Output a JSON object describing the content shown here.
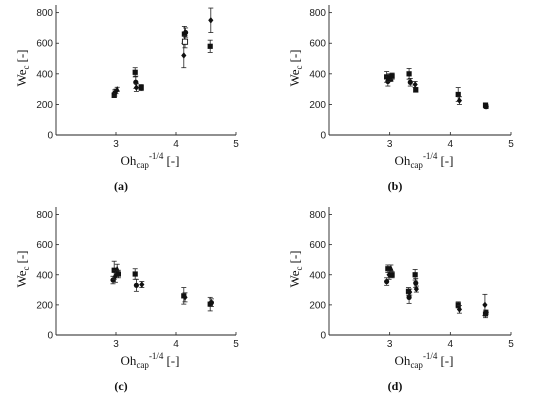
{
  "chart_data": [
    {
      "type": "scatter",
      "panel_label": "(a)",
      "xlabel": "Oh",
      "xlabel_sub": "cap",
      "xlabel_sup": "-1/4",
      "xlabel_unit": "[-]",
      "ylabel": "We",
      "ylabel_sub": "c",
      "ylabel_unit": "[-]",
      "xlim": [
        2,
        5
      ],
      "ylim": [
        0,
        850
      ],
      "xticks": [
        3,
        4,
        5
      ],
      "yticks": [
        0,
        200,
        400,
        600,
        800
      ],
      "grid": false,
      "points": [
        {
          "x": 2.97,
          "y": 260,
          "err": 15,
          "marker": "square"
        },
        {
          "x": 2.98,
          "y": 275,
          "err": 20,
          "marker": "circle"
        },
        {
          "x": 3.0,
          "y": 285,
          "err": 15,
          "marker": "diamond"
        },
        {
          "x": 3.02,
          "y": 300,
          "err": 12,
          "marker": "triangle"
        },
        {
          "x": 3.32,
          "y": 410,
          "err": 30,
          "marker": "square"
        },
        {
          "x": 3.33,
          "y": 345,
          "err": 40,
          "marker": "circle"
        },
        {
          "x": 3.34,
          "y": 310,
          "err": 25,
          "marker": "diamond"
        },
        {
          "x": 3.42,
          "y": 310,
          "err": 20,
          "marker": "square"
        },
        {
          "x": 4.13,
          "y": 520,
          "err": 80,
          "marker": "diamond"
        },
        {
          "x": 4.14,
          "y": 660,
          "err": 50,
          "marker": "square"
        },
        {
          "x": 4.15,
          "y": 610,
          "err": 40,
          "marker": "square-open"
        },
        {
          "x": 4.16,
          "y": 670,
          "err": 30,
          "marker": "circle"
        },
        {
          "x": 4.57,
          "y": 580,
          "err": 40,
          "marker": "square"
        },
        {
          "x": 4.58,
          "y": 750,
          "err": 80,
          "marker": "diamond"
        }
      ]
    },
    {
      "type": "scatter",
      "panel_label": "(b)",
      "xlabel": "Oh",
      "xlabel_sub": "cap",
      "xlabel_sup": "-1/4",
      "xlabel_unit": "[-]",
      "ylabel": "We",
      "ylabel_sub": "c",
      "ylabel_unit": "[-]",
      "xlim": [
        2,
        5
      ],
      "ylim": [
        0,
        850
      ],
      "xticks": [
        3,
        4,
        5
      ],
      "yticks": [
        0,
        200,
        400,
        600,
        800
      ],
      "grid": false,
      "points": [
        {
          "x": 2.95,
          "y": 380,
          "err": 35,
          "marker": "square"
        },
        {
          "x": 2.97,
          "y": 350,
          "err": 30,
          "marker": "circle"
        },
        {
          "x": 2.99,
          "y": 375,
          "err": 25,
          "marker": "diamond"
        },
        {
          "x": 3.02,
          "y": 370,
          "err": 20,
          "marker": "triangle"
        },
        {
          "x": 3.04,
          "y": 385,
          "err": 20,
          "marker": "square"
        },
        {
          "x": 3.32,
          "y": 400,
          "err": 35,
          "marker": "square"
        },
        {
          "x": 3.34,
          "y": 345,
          "err": 25,
          "marker": "circle"
        },
        {
          "x": 3.42,
          "y": 330,
          "err": 20,
          "marker": "diamond"
        },
        {
          "x": 3.43,
          "y": 295,
          "err": 15,
          "marker": "square"
        },
        {
          "x": 4.13,
          "y": 265,
          "err": 45,
          "marker": "square"
        },
        {
          "x": 4.15,
          "y": 225,
          "err": 25,
          "marker": "diamond"
        },
        {
          "x": 4.58,
          "y": 195,
          "err": 15,
          "marker": "square"
        },
        {
          "x": 4.59,
          "y": 185,
          "err": 12,
          "marker": "circle"
        }
      ]
    },
    {
      "type": "scatter",
      "panel_label": "(c)",
      "xlabel": "Oh",
      "xlabel_sub": "cap",
      "xlabel_sup": "-1/4",
      "xlabel_unit": "[-]",
      "ylabel": "We",
      "ylabel_sub": "c",
      "ylabel_unit": "[-]",
      "xlim": [
        2,
        5
      ],
      "ylim": [
        0,
        850
      ],
      "xticks": [
        3,
        4,
        5
      ],
      "yticks": [
        0,
        200,
        400,
        600,
        800
      ],
      "grid": false,
      "points": [
        {
          "x": 2.95,
          "y": 365,
          "err": 25,
          "marker": "circle"
        },
        {
          "x": 2.97,
          "y": 430,
          "err": 60,
          "marker": "square"
        },
        {
          "x": 2.99,
          "y": 390,
          "err": 40,
          "marker": "diamond"
        },
        {
          "x": 3.02,
          "y": 440,
          "err": 30,
          "marker": "triangle"
        },
        {
          "x": 3.04,
          "y": 405,
          "err": 25,
          "marker": "square"
        },
        {
          "x": 3.32,
          "y": 405,
          "err": 35,
          "marker": "square"
        },
        {
          "x": 3.34,
          "y": 330,
          "err": 40,
          "marker": "circle"
        },
        {
          "x": 3.43,
          "y": 335,
          "err": 20,
          "marker": "diamond"
        },
        {
          "x": 4.13,
          "y": 260,
          "err": 55,
          "marker": "square"
        },
        {
          "x": 4.15,
          "y": 250,
          "err": 30,
          "marker": "diamond"
        },
        {
          "x": 4.57,
          "y": 205,
          "err": 45,
          "marker": "square"
        },
        {
          "x": 4.59,
          "y": 215,
          "err": 25,
          "marker": "circle"
        }
      ]
    },
    {
      "type": "scatter",
      "panel_label": "(d)",
      "xlabel": "Oh",
      "xlabel_sub": "cap",
      "xlabel_sup": "-1/4",
      "xlabel_unit": "[-]",
      "ylabel": "We",
      "ylabel_sub": "c",
      "ylabel_unit": "[-]",
      "xlim": [
        2,
        5
      ],
      "ylim": [
        0,
        850
      ],
      "xticks": [
        3,
        4,
        5
      ],
      "yticks": [
        0,
        200,
        400,
        600,
        800
      ],
      "grid": false,
      "points": [
        {
          "x": 2.95,
          "y": 355,
          "err": 25,
          "marker": "circle"
        },
        {
          "x": 2.97,
          "y": 440,
          "err": 25,
          "marker": "square"
        },
        {
          "x": 2.99,
          "y": 400,
          "err": 30,
          "marker": "diamond"
        },
        {
          "x": 3.02,
          "y": 445,
          "err": 20,
          "marker": "triangle"
        },
        {
          "x": 3.04,
          "y": 400,
          "err": 20,
          "marker": "square"
        },
        {
          "x": 3.31,
          "y": 290,
          "err": 25,
          "marker": "square"
        },
        {
          "x": 3.32,
          "y": 250,
          "err": 40,
          "marker": "circle"
        },
        {
          "x": 3.33,
          "y": 285,
          "err": 20,
          "marker": "diamond"
        },
        {
          "x": 3.42,
          "y": 400,
          "err": 35,
          "marker": "square"
        },
        {
          "x": 3.43,
          "y": 345,
          "err": 30,
          "marker": "circle"
        },
        {
          "x": 3.44,
          "y": 305,
          "err": 20,
          "marker": "diamond"
        },
        {
          "x": 4.13,
          "y": 200,
          "err": 20,
          "marker": "square"
        },
        {
          "x": 4.15,
          "y": 170,
          "err": 25,
          "marker": "diamond"
        },
        {
          "x": 4.57,
          "y": 200,
          "err": 70,
          "marker": "diamond"
        },
        {
          "x": 4.58,
          "y": 140,
          "err": 25,
          "marker": "square"
        },
        {
          "x": 4.59,
          "y": 150,
          "err": 15,
          "marker": "circle"
        }
      ]
    }
  ]
}
